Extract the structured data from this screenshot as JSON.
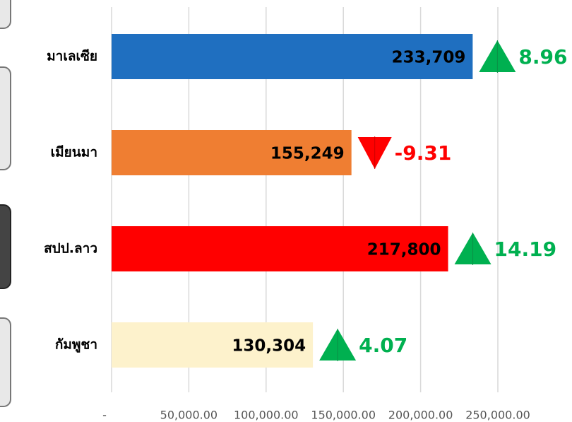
{
  "chart_data": {
    "type": "bar",
    "orientation": "horizontal",
    "categories": [
      "มาเลเซีย",
      "เมียนมา",
      "สปป.ลาว",
      "กัมพูชา"
    ],
    "values": [
      233709,
      155249,
      217800,
      130304
    ],
    "value_labels": [
      "233,709",
      "155,249",
      "217,800",
      "130,304"
    ],
    "colors": [
      "#1f6fc0",
      "#ef7e32",
      "#ff0000",
      "#fdf2cc"
    ],
    "growth": [
      8.96,
      -9.31,
      14.19,
      4.07
    ],
    "growth_colors": {
      "up": "#00b050",
      "down": "#ff0000"
    },
    "xlim": [
      0,
      250000
    ],
    "xticks": [
      {
        "value": 0,
        "label": "-"
      },
      {
        "value": 50000,
        "label": "50,000.00"
      },
      {
        "value": 100000,
        "label": "100,000.00"
      },
      {
        "value": 150000,
        "label": "150,000.00"
      },
      {
        "value": 200000,
        "label": "200,000.00"
      },
      {
        "value": 250000,
        "label": "250,000.00"
      }
    ],
    "grid": true
  }
}
